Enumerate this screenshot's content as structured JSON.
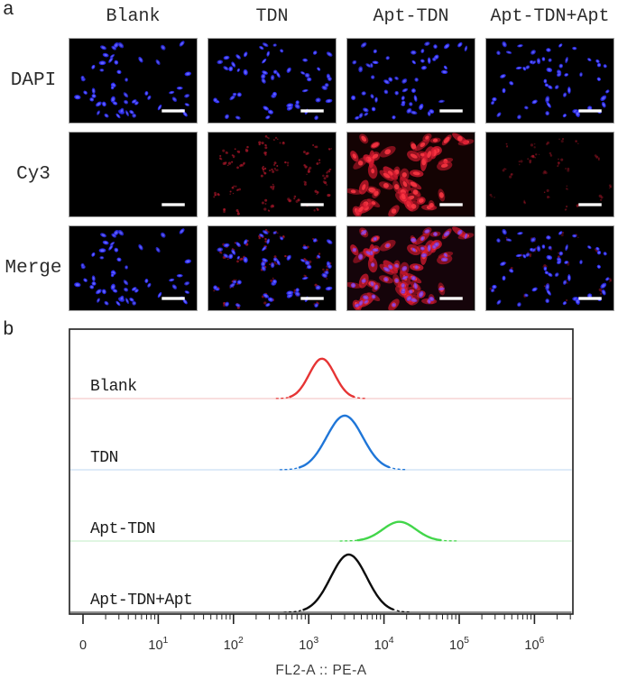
{
  "figure": {
    "panel_a_label": "a",
    "panel_b_label": "b"
  },
  "panel_a": {
    "column_headers": [
      "Blank",
      "TDN",
      "Apt-TDN",
      "Apt-TDN+Apt"
    ],
    "row_labels": [
      "DAPI",
      "Cy3",
      "Merge"
    ],
    "colors": {
      "image_background": "#000000",
      "dapi_nuclei": "#2a2af0",
      "dapi_nuclei_core": "#6a6aff",
      "cy3_faint": "#a51628",
      "cy3_strong": "#d81a30",
      "cy3_strong_core": "#ff3844",
      "merge_overlap": "#e040b0",
      "scale_bar": "#ffffff"
    },
    "cells": [
      {
        "row": "DAPI",
        "col": "Blank",
        "blue": true,
        "red": "none"
      },
      {
        "row": "DAPI",
        "col": "TDN",
        "blue": true,
        "red": "none"
      },
      {
        "row": "DAPI",
        "col": "Apt-TDN",
        "blue": true,
        "red": "none"
      },
      {
        "row": "DAPI",
        "col": "Apt-TDN+Apt",
        "blue": true,
        "red": "none"
      },
      {
        "row": "Cy3",
        "col": "Blank",
        "blue": false,
        "red": "none"
      },
      {
        "row": "Cy3",
        "col": "TDN",
        "blue": false,
        "red": "faint"
      },
      {
        "row": "Cy3",
        "col": "Apt-TDN",
        "blue": false,
        "red": "strong"
      },
      {
        "row": "Cy3",
        "col": "Apt-TDN+Apt",
        "blue": false,
        "red": "weak"
      },
      {
        "row": "Merge",
        "col": "Blank",
        "blue": true,
        "red": "none"
      },
      {
        "row": "Merge",
        "col": "TDN",
        "blue": true,
        "red": "faint"
      },
      {
        "row": "Merge",
        "col": "Apt-TDN",
        "blue": true,
        "red": "strong"
      },
      {
        "row": "Merge",
        "col": "Apt-TDN+Apt",
        "blue": true,
        "red": "weak"
      }
    ]
  },
  "chart_data": {
    "type": "area",
    "subtype": "flow-cytometry-histogram-overlay",
    "title": "",
    "xlabel": "FL2-A :: PE-A",
    "ylabel": "",
    "x_axis": {
      "scale": "log",
      "ticks": [
        "0",
        "10^1",
        "10^2",
        "10^3",
        "10^4",
        "10^5",
        "10^6"
      ]
    },
    "legend_position": "inline-left",
    "series": [
      {
        "name": "Blank",
        "color": "#e63434",
        "baseline_color": "#f3bcbc",
        "peak_center": 1500,
        "sigma_log": 0.17,
        "rel_height": 0.56
      },
      {
        "name": "TDN",
        "color": "#1f76d8",
        "baseline_color": "#bdd7f0",
        "peak_center": 3000,
        "sigma_log": 0.24,
        "rel_height": 0.76
      },
      {
        "name": "Apt-TDN",
        "color": "#42d64a",
        "baseline_color": "#c2eec6",
        "peak_center": 16000,
        "sigma_log": 0.22,
        "rel_height": 0.27
      },
      {
        "name": "Apt-TDN+Apt",
        "color": "#0d0d0d",
        "baseline_color": "#1a1a1a",
        "peak_center": 3400,
        "sigma_log": 0.24,
        "rel_height": 0.81
      }
    ]
  }
}
